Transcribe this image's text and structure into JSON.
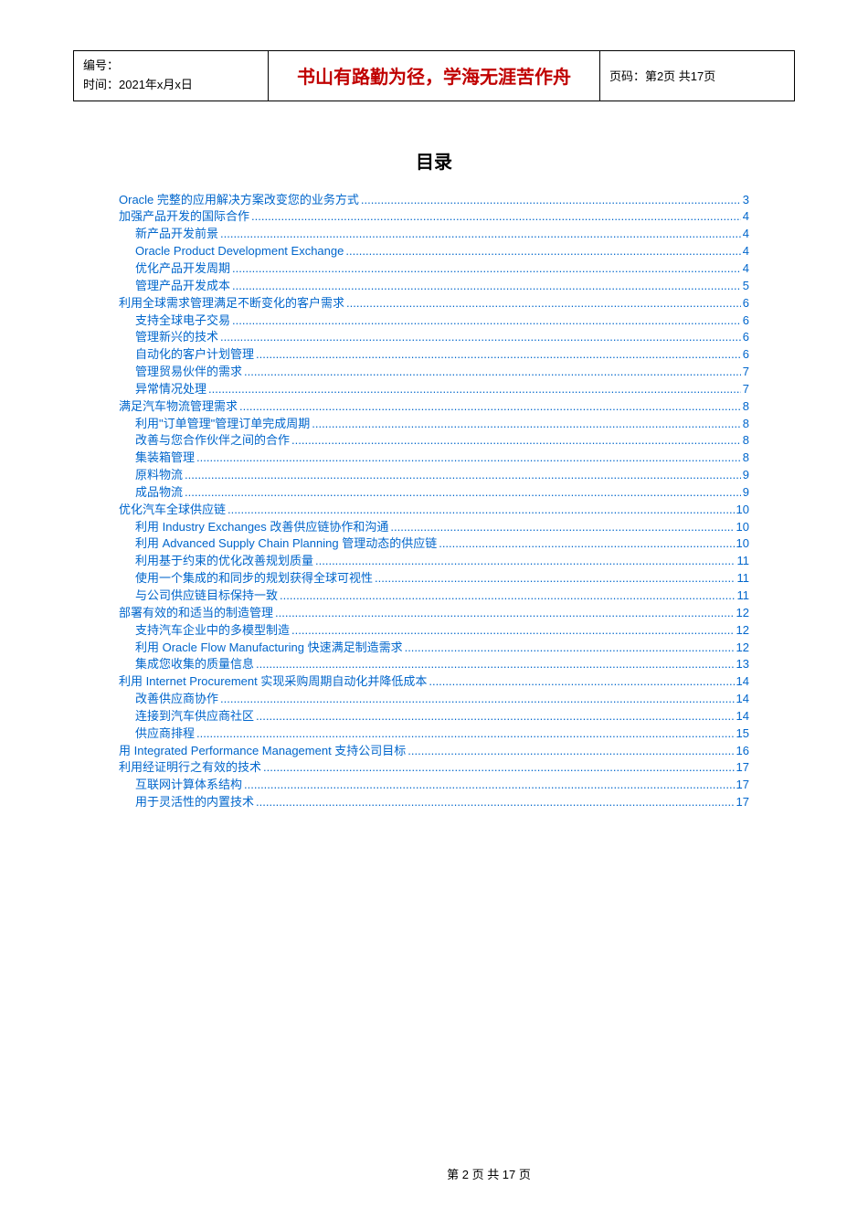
{
  "header": {
    "doc_number_label": "编号：",
    "time_label": "时间：",
    "time_value": "2021年x月x日",
    "motto": "书山有路勤为径，学海无涯苦作舟",
    "page_label": "页码：第2页 共17页"
  },
  "toc_title": "目录",
  "toc": [
    {
      "level": 0,
      "label": "Oracle 完整的应用解决方案改变您的业务方式",
      "page": "3"
    },
    {
      "level": 0,
      "label": "加强产品开发的国际合作",
      "page": "4"
    },
    {
      "level": 1,
      "label": "新产品开发前景",
      "page": "4"
    },
    {
      "level": 1,
      "label": "Oracle Product Development Exchange",
      "page": "4"
    },
    {
      "level": 1,
      "label": "优化产品开发周期",
      "page": "4"
    },
    {
      "level": 1,
      "label": "管理产品开发成本",
      "page": "5"
    },
    {
      "level": 0,
      "label": "利用全球需求管理满足不断变化的客户需求",
      "page": "6"
    },
    {
      "level": 1,
      "label": "支持全球电子交易",
      "page": "6"
    },
    {
      "level": 1,
      "label": "管理新兴的技术",
      "page": "6"
    },
    {
      "level": 1,
      "label": "自动化的客户计划管理",
      "page": "6"
    },
    {
      "level": 1,
      "label": "管理贸易伙伴的需求",
      "page": "7"
    },
    {
      "level": 1,
      "label": "异常情况处理",
      "page": "7"
    },
    {
      "level": 0,
      "label": "满足汽车物流管理需求",
      "page": "8"
    },
    {
      "level": 1,
      "label": "利用\"订单管理\"管理订单完成周期",
      "page": "8"
    },
    {
      "level": 1,
      "label": "改善与您合作伙伴之间的合作",
      "page": "8"
    },
    {
      "level": 1,
      "label": "集装箱管理",
      "page": "8"
    },
    {
      "level": 1,
      "label": "原料物流",
      "page": "9"
    },
    {
      "level": 1,
      "label": "成品物流",
      "page": "9"
    },
    {
      "level": 0,
      "label": "优化汽车全球供应链",
      "page": "10"
    },
    {
      "level": 1,
      "label": "利用 Industry Exchanges 改善供应链协作和沟通",
      "page": "10"
    },
    {
      "level": 1,
      "label": "利用 Advanced Supply Chain Planning 管理动态的供应链",
      "page": "10"
    },
    {
      "level": 1,
      "label": "利用基于约束的优化改善规划质量",
      "page": "11"
    },
    {
      "level": 1,
      "label": "使用一个集成的和同步的规划获得全球可视性",
      "page": "11"
    },
    {
      "level": 1,
      "label": "与公司供应链目标保持一致",
      "page": "11"
    },
    {
      "level": 0,
      "label": "部署有效的和适当的制造管理",
      "page": "12"
    },
    {
      "level": 1,
      "label": "支持汽车企业中的多模型制造",
      "page": "12"
    },
    {
      "level": 1,
      "label": "利用 Oracle Flow Manufacturing 快速满足制造需求",
      "page": "12"
    },
    {
      "level": 1,
      "label": "集成您收集的质量信息",
      "page": "13"
    },
    {
      "level": 0,
      "label": "利用 Internet Procurement 实现采购周期自动化并降低成本",
      "page": "14"
    },
    {
      "level": 1,
      "label": "改善供应商协作",
      "page": "14"
    },
    {
      "level": 1,
      "label": "连接到汽车供应商社区",
      "page": "14"
    },
    {
      "level": 1,
      "label": "供应商排程",
      "page": "15"
    },
    {
      "level": 0,
      "label": "用 Integrated Performance Management 支持公司目标",
      "page": "16"
    },
    {
      "level": 0,
      "label": "利用经证明行之有效的技术",
      "page": "17"
    },
    {
      "level": 1,
      "label": "互联网计算体系结构",
      "page": "17"
    },
    {
      "level": 1,
      "label": "用于灵活性的内置技术",
      "page": "17"
    }
  ],
  "footer": "第 2 页 共 17 页"
}
